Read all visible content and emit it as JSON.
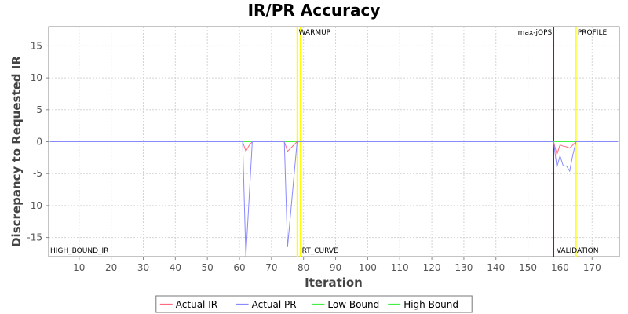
{
  "chart_data": {
    "type": "line",
    "title": "IR/PR Accuracy",
    "xlabel": "Iteration",
    "ylabel": "Discrepancy to Requested IR",
    "xlim": [
      0.5,
      178.5
    ],
    "ylim": [
      -18,
      18
    ],
    "x_ticks": [
      10,
      20,
      30,
      40,
      50,
      60,
      70,
      80,
      90,
      100,
      110,
      120,
      130,
      140,
      150,
      160,
      170
    ],
    "y_ticks": [
      -15,
      -10,
      -5,
      0,
      5,
      10,
      15
    ],
    "grid": true,
    "legend_position": "bottom",
    "series": [
      {
        "name": "Actual IR",
        "color": "#ff6a80",
        "points": [
          [
            1,
            0
          ],
          [
            60,
            0
          ],
          [
            61,
            0
          ],
          [
            62,
            -1.5
          ],
          [
            63,
            -0.6
          ],
          [
            64,
            0
          ],
          [
            74,
            0
          ],
          [
            75,
            -1.5
          ],
          [
            76,
            -1.0
          ],
          [
            77,
            -0.5
          ],
          [
            78,
            0
          ],
          [
            158,
            0
          ],
          [
            159,
            -2
          ],
          [
            160,
            -0.5
          ],
          [
            161,
            -0.7
          ],
          [
            162,
            -0.8
          ],
          [
            163,
            -1.0
          ],
          [
            164,
            -0.5
          ],
          [
            165,
            0
          ],
          [
            178,
            0
          ]
        ]
      },
      {
        "name": "Actual PR",
        "color": "#8a8aff",
        "points": [
          [
            1,
            0
          ],
          [
            60,
            0
          ],
          [
            61,
            0
          ],
          [
            62,
            -18
          ],
          [
            63,
            -9
          ],
          [
            64,
            0
          ],
          [
            74,
            0
          ],
          [
            75,
            -16.5
          ],
          [
            76,
            -11
          ],
          [
            77,
            -5.5
          ],
          [
            78,
            0
          ],
          [
            158,
            0
          ],
          [
            159,
            -4
          ],
          [
            160,
            -2.2
          ],
          [
            161,
            -3.8
          ],
          [
            162,
            -3.8
          ],
          [
            163,
            -4.6
          ],
          [
            164,
            -2
          ],
          [
            165,
            0
          ],
          [
            178,
            0
          ]
        ]
      },
      {
        "name": "Low Bound",
        "color": "#44ee44",
        "points": [
          [
            1,
            0
          ],
          [
            61,
            0
          ],
          [
            62,
            0
          ],
          [
            64,
            0
          ],
          [
            78,
            0
          ],
          [
            158,
            0
          ],
          [
            178,
            0
          ]
        ]
      },
      {
        "name": "High Bound",
        "color": "#44ee44",
        "points": [
          [
            1,
            0
          ],
          [
            178,
            0
          ]
        ]
      }
    ],
    "markers": [
      {
        "x": 78,
        "color": "#ffff00",
        "label_top": "WARMUP",
        "label_bottom": ""
      },
      {
        "x": 79,
        "color": "#ffff00",
        "label_top": "",
        "label_bottom": "RT_CURVE"
      },
      {
        "x": 158,
        "color": "#cc0000",
        "label_top": "max-jOPS",
        "label_bottom": "VALIDATION"
      },
      {
        "x": 165,
        "color": "#ffff00",
        "label_top": "PROFILE",
        "label_bottom": ""
      }
    ],
    "corner_labels": {
      "bottom_left": "HIGH_BOUND_IR"
    }
  }
}
